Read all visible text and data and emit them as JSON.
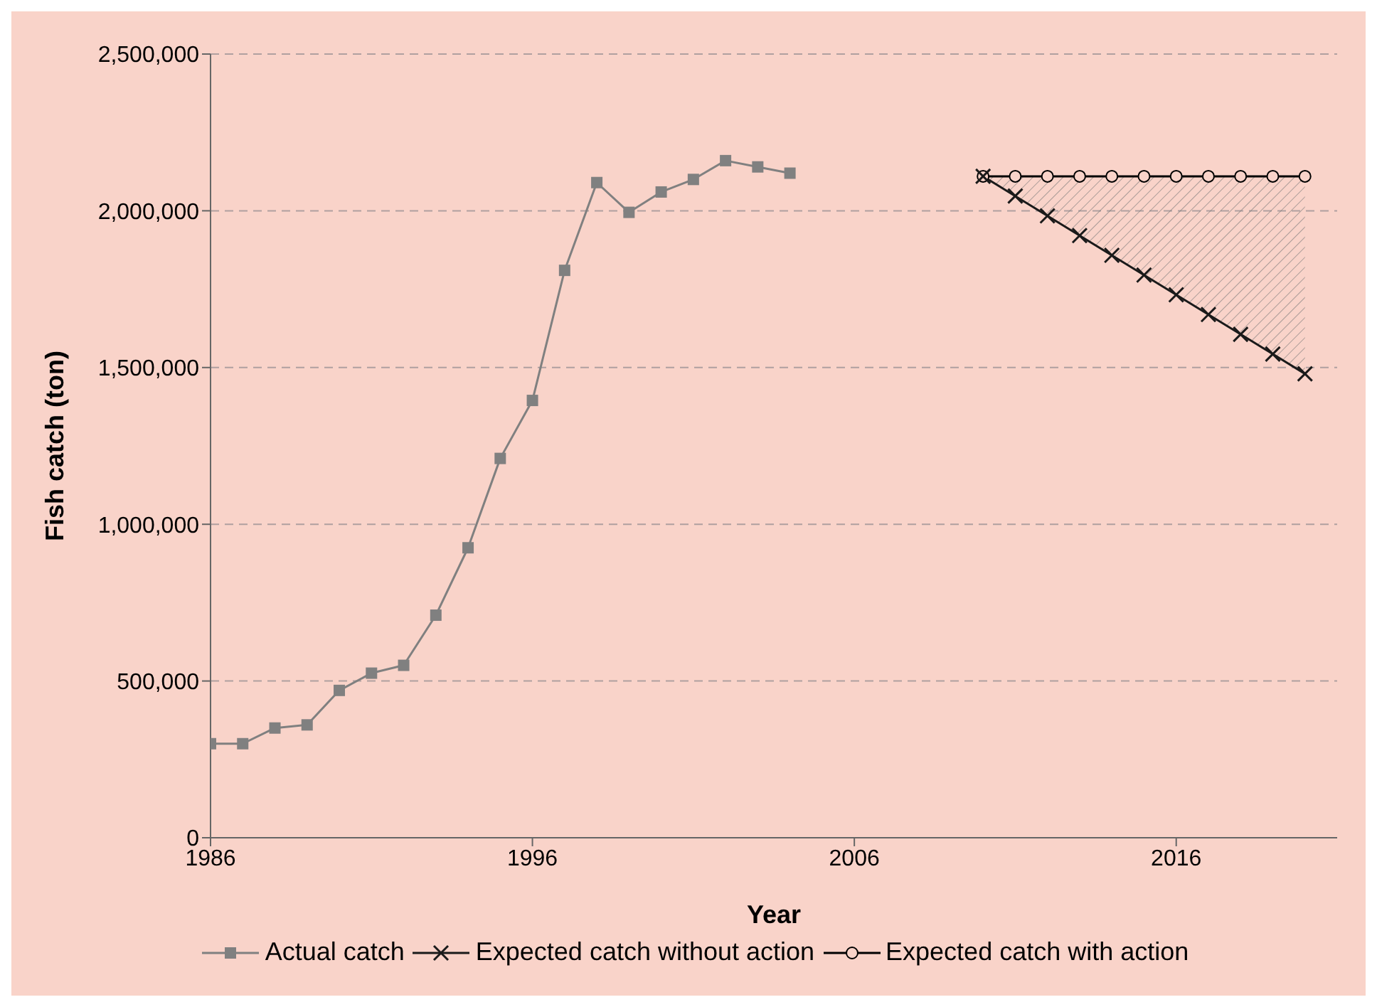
{
  "chart_data": {
    "type": "line",
    "xlabel": "Year",
    "ylabel": "Fish catch (ton)",
    "xlim": [
      1986,
      2021
    ],
    "xticks": [
      1986,
      1996,
      2006,
      2016
    ],
    "ylim": [
      0,
      2500000
    ],
    "yticks": [
      0,
      {
        "value": 500000,
        "label": "500,000"
      },
      {
        "value": 1000000,
        "label": "1,000,000"
      },
      {
        "value": 1500000,
        "label": "1,500,000"
      },
      {
        "value": 2000000,
        "label": "2,000,000"
      },
      {
        "value": 2500000,
        "label": "2,500,000"
      }
    ],
    "grid": "y",
    "legend": "bottom",
    "series": [
      {
        "name": "Actual catch",
        "color": "#808080",
        "marker": "square",
        "x": [
          1986,
          1987,
          1988,
          1989,
          1990,
          1991,
          1992,
          1993,
          1994,
          1995,
          1996,
          1997,
          1998,
          1999,
          2000,
          2001,
          2002,
          2003,
          2004
        ],
        "values": [
          300000,
          300000,
          350000,
          360000,
          470000,
          525000,
          550000,
          710000,
          925000,
          1210000,
          1395000,
          1810000,
          2090000,
          1995000,
          2060000,
          2100000,
          2160000,
          2140000,
          2120000
        ]
      },
      {
        "name": "Expected catch without action",
        "color": "#1a1a1a",
        "marker": "cross",
        "x": [
          2010,
          2011,
          2012,
          2013,
          2014,
          2015,
          2016,
          2017,
          2018,
          2019,
          2020
        ],
        "values": [
          2110000,
          2047000,
          1984000,
          1921000,
          1858000,
          1795000,
          1732000,
          1669000,
          1606000,
          1543000,
          1480000
        ],
        "lower": [
          2110000,
          2047000,
          1984000,
          1921000,
          1858000,
          1795000,
          1732000,
          1669000,
          1606000,
          1543000,
          1480000
        ],
        "upper": [
          2110000,
          2110000,
          2110000,
          2110000,
          2110000,
          2110000,
          2110000,
          2110000,
          2110000,
          2110000,
          2110000
        ]
      },
      {
        "name": "Expected catch with action",
        "color": "#000000",
        "marker": "circle",
        "x": [
          2010,
          2011,
          2012,
          2013,
          2014,
          2015,
          2016,
          2017,
          2018,
          2019,
          2020
        ],
        "values": [
          2110000,
          2110000,
          2110000,
          2110000,
          2110000,
          2110000,
          2110000,
          2110000,
          2110000,
          2110000,
          2110000
        ]
      }
    ]
  }
}
